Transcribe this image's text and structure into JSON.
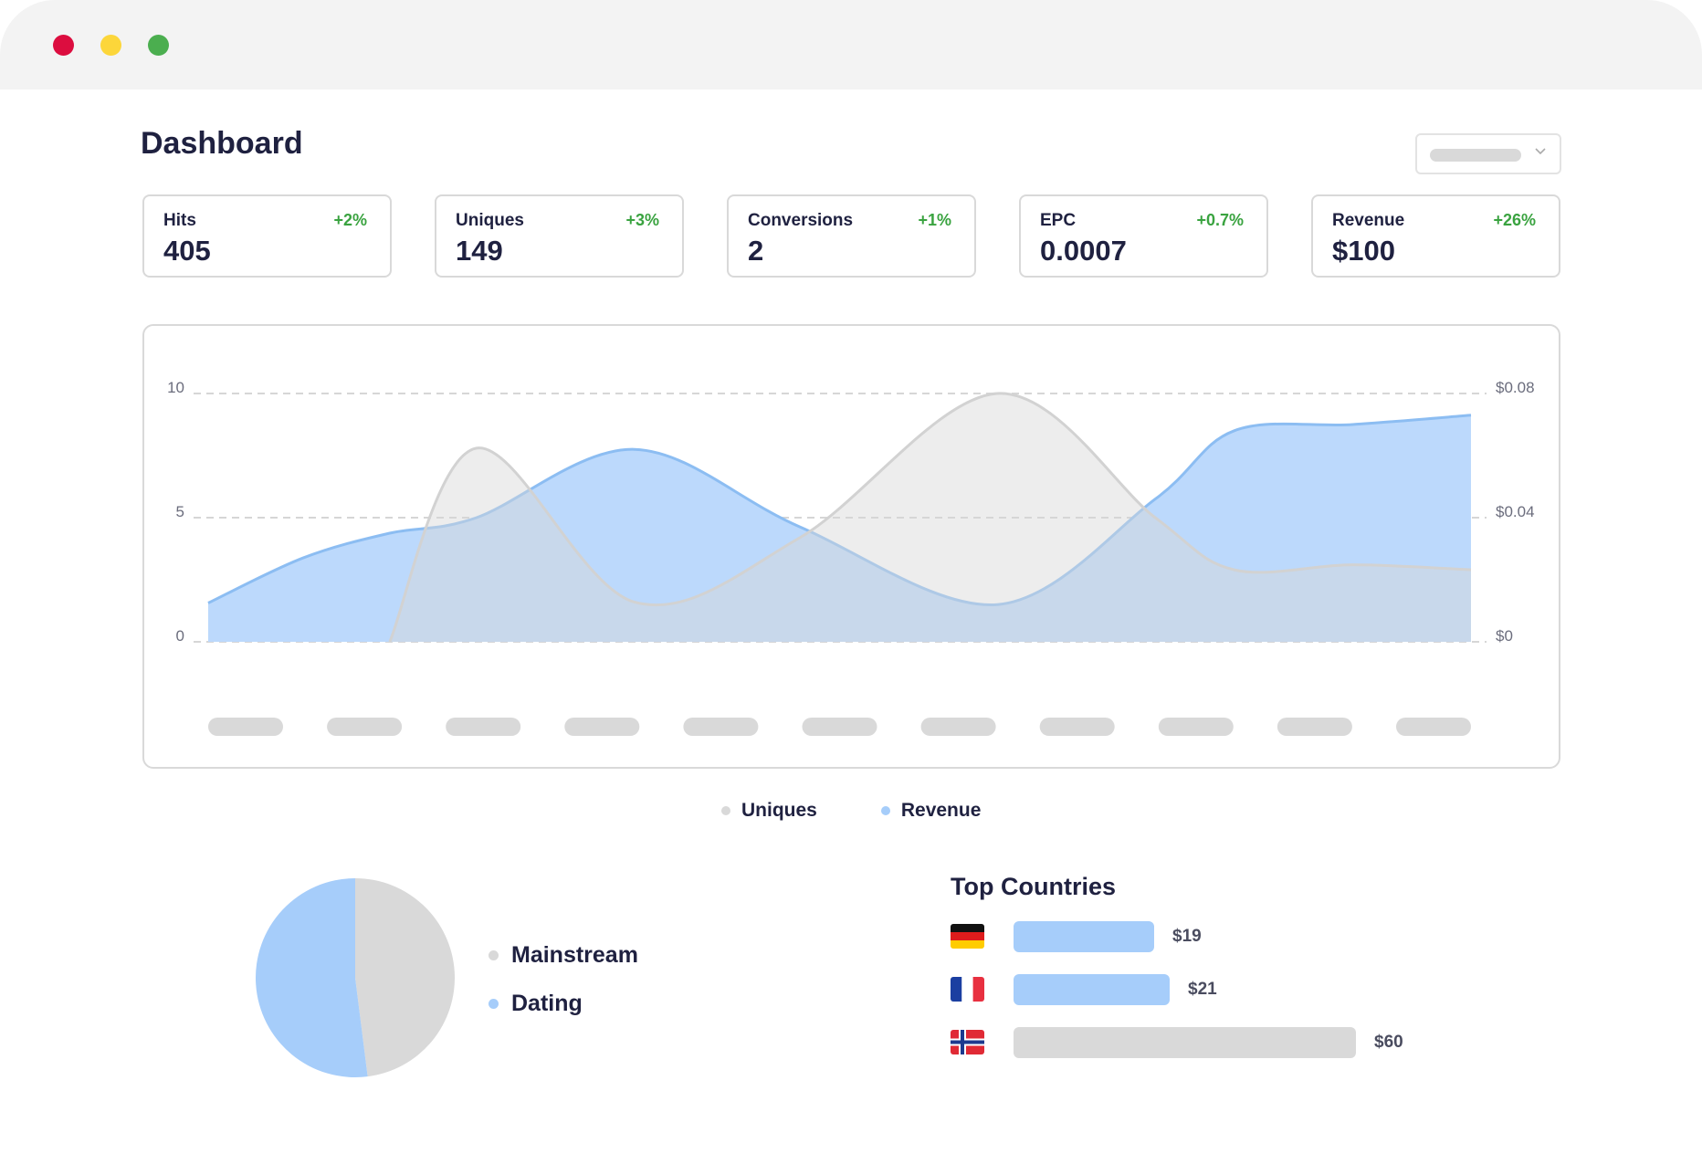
{
  "window": {
    "controls": [
      "close",
      "minimize",
      "maximize"
    ],
    "colors": {
      "close": "#dc0d3f",
      "minimize": "#fcd63a",
      "maximize": "#4bae4f"
    }
  },
  "header": {
    "title": "Dashboard",
    "range_select": {
      "value": "",
      "icon": "chevron-down-icon"
    }
  },
  "stats": [
    {
      "label": "Hits",
      "value": "405",
      "delta": "+2%"
    },
    {
      "label": "Uniques",
      "value": "149",
      "delta": "+3%"
    },
    {
      "label": "Conversions",
      "value": "2",
      "delta": "+1%"
    },
    {
      "label": "EPC",
      "value": "0.0007",
      "delta": "+0.7%"
    },
    {
      "label": "Revenue",
      "value": "$100",
      "delta": "+26%"
    }
  ],
  "colors": {
    "positive": "#3aa340",
    "revenue": "#a6cdfa",
    "uniques": "#d9d9d9",
    "text": "#1f2140"
  },
  "chart_data": {
    "type": "area",
    "left_axis": {
      "ticks": [
        "0",
        "5",
        "10"
      ],
      "range": [
        0,
        10
      ]
    },
    "right_axis": {
      "ticks": [
        "$0",
        "$0.04",
        "$0.08"
      ],
      "range": [
        0,
        0.08
      ]
    },
    "x_label_count": 11,
    "grid": true,
    "legend_position": "bottom",
    "series": [
      {
        "name": "Uniques",
        "axis": "left",
        "color": "#d9d9d9",
        "x": [
          2.3,
          3.4,
          5.4,
          7.5,
          10.0,
          12.0,
          13.0,
          14.5,
          16.0
        ],
        "values": [
          0,
          7.8,
          1.6,
          4.2,
          10.0,
          5.0,
          2.9,
          3.1,
          2.9
        ]
      },
      {
        "name": "Revenue",
        "axis": "right",
        "color": "#a6cdfa",
        "x": [
          0,
          1.2,
          2.3,
          3.4,
          5.4,
          7.5,
          10.0,
          12.0,
          13.0,
          14.5,
          16.0
        ],
        "values": [
          0.0125,
          0.027,
          0.035,
          0.04,
          0.062,
          0.037,
          0.012,
          0.046,
          0.068,
          0.07,
          0.073
        ]
      }
    ]
  },
  "legend": [
    {
      "name": "Uniques",
      "color": "#d9d9d9"
    },
    {
      "name": "Revenue",
      "color": "#a6cdfa"
    }
  ],
  "pie": {
    "type": "pie",
    "slices": [
      {
        "name": "Mainstream",
        "value": 48,
        "color": "#d9d9d9"
      },
      {
        "name": "Dating",
        "value": 52,
        "color": "#a6cdfa"
      }
    ]
  },
  "top_countries": {
    "title": "Top Countries",
    "rows": [
      {
        "flag": "germany-flag-icon",
        "amount": 19,
        "value": "$19",
        "color": "#a6cdfa"
      },
      {
        "flag": "france-flag-icon",
        "amount": 21,
        "value": "$21",
        "color": "#a6cdfa"
      },
      {
        "flag": "norway-flag-icon",
        "amount": 60,
        "value": "$60",
        "color": "#d9d9d9"
      }
    ]
  }
}
